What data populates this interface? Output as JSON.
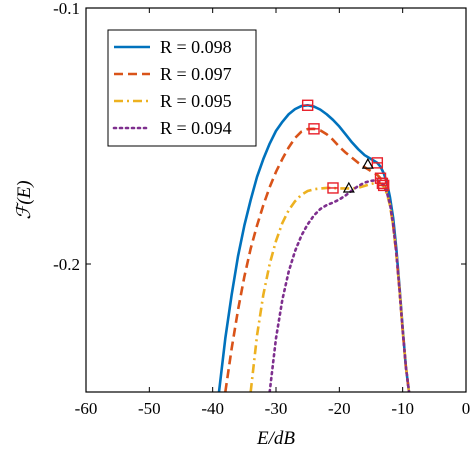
{
  "chart_data": {
    "type": "line",
    "xlabel": "E/dB",
    "ylabel": "ℱ(E)",
    "xlim": [
      -60,
      0
    ],
    "ylim": [
      -0.25,
      -0.1
    ],
    "xticks": [
      -60,
      -50,
      -40,
      -30,
      -20,
      -10,
      0
    ],
    "yticks": [
      -0.2,
      -0.1
    ],
    "xtick_labels": [
      "-60",
      "-50",
      "-40",
      "-30",
      "-20",
      "-10",
      "0"
    ],
    "ytick_labels": [
      "-0.2",
      "-0.1"
    ],
    "grid": false,
    "legend_position": "top-left",
    "series": [
      {
        "name": "R = 0.098",
        "color": "#0072BD",
        "dash": "solid",
        "x": [
          -39,
          -38,
          -37,
          -36,
          -35,
          -34,
          -33,
          -32,
          -31,
          -30,
          -29,
          -28,
          -27,
          -26,
          -25,
          -24,
          -23,
          -22,
          -21,
          -20,
          -19,
          -18,
          -17,
          -16,
          -15,
          -14,
          -13.5,
          -13,
          -12.5,
          -12,
          -11.5,
          -11,
          -10.5,
          -10,
          -9.5,
          -9
        ],
        "y": [
          -0.25,
          -0.229,
          -0.212,
          -0.197,
          -0.185,
          -0.175,
          -0.166,
          -0.159,
          -0.153,
          -0.148,
          -0.1445,
          -0.1415,
          -0.1395,
          -0.1383,
          -0.138,
          -0.1385,
          -0.1397,
          -0.1415,
          -0.1437,
          -0.1463,
          -0.1494,
          -0.1525,
          -0.1552,
          -0.1575,
          -0.159,
          -0.1605,
          -0.162,
          -0.1645,
          -0.168,
          -0.174,
          -0.182,
          -0.194,
          -0.209,
          -0.225,
          -0.24,
          -0.25
        ]
      },
      {
        "name": "R = 0.097",
        "color": "#D95319",
        "dash": "dashed",
        "x": [
          -38,
          -37,
          -36,
          -35,
          -34,
          -33,
          -32,
          -31,
          -30,
          -29,
          -28,
          -27,
          -26,
          -25,
          -24,
          -23,
          -22,
          -21,
          -20,
          -19,
          -18,
          -17,
          -16,
          -15,
          -14,
          -13.5,
          -13,
          -12.5,
          -12,
          -11.5,
          -11,
          -10.5,
          -10,
          -9.5,
          -9
        ],
        "y": [
          -0.25,
          -0.233,
          -0.218,
          -0.205,
          -0.194,
          -0.185,
          -0.177,
          -0.17,
          -0.164,
          -0.159,
          -0.1545,
          -0.1508,
          -0.1483,
          -0.1473,
          -0.1472,
          -0.1478,
          -0.1493,
          -0.1515,
          -0.1542,
          -0.1565,
          -0.1585,
          -0.1605,
          -0.1622,
          -0.1637,
          -0.1652,
          -0.1665,
          -0.1685,
          -0.172,
          -0.177,
          -0.185,
          -0.196,
          -0.21,
          -0.226,
          -0.24,
          -0.25
        ]
      },
      {
        "name": "R = 0.095",
        "color": "#EDB120",
        "dash": "dashdot",
        "x": [
          -34,
          -33,
          -32,
          -31,
          -30,
          -29,
          -28,
          -27,
          -26,
          -25,
          -24,
          -23,
          -22,
          -21,
          -20,
          -19,
          -18,
          -17,
          -16,
          -15,
          -14,
          -13.5,
          -13,
          -12.5,
          -12,
          -11.5,
          -11,
          -10.5,
          -10,
          -9.5,
          -9
        ],
        "y": [
          -0.25,
          -0.228,
          -0.212,
          -0.2,
          -0.191,
          -0.184,
          -0.179,
          -0.1755,
          -0.173,
          -0.1715,
          -0.1708,
          -0.1705,
          -0.1703,
          -0.1703,
          -0.1705,
          -0.1705,
          -0.1705,
          -0.1702,
          -0.1695,
          -0.1687,
          -0.1682,
          -0.1685,
          -0.1698,
          -0.1725,
          -0.177,
          -0.185,
          -0.196,
          -0.21,
          -0.226,
          -0.24,
          -0.25
        ]
      },
      {
        "name": "R = 0.094",
        "color": "#7E2F8E",
        "dash": "dotted",
        "x": [
          -31,
          -30,
          -29,
          -28,
          -27,
          -26,
          -25,
          -24,
          -23,
          -22,
          -21,
          -20,
          -19,
          -18,
          -17,
          -16,
          -15,
          -14,
          -13.5,
          -13,
          -12.5,
          -12,
          -11.5,
          -11,
          -10.5,
          -10,
          -9.5,
          -9
        ],
        "y": [
          -0.25,
          -0.229,
          -0.214,
          -0.203,
          -0.195,
          -0.189,
          -0.1845,
          -0.181,
          -0.1785,
          -0.177,
          -0.176,
          -0.1748,
          -0.1732,
          -0.1713,
          -0.1695,
          -0.1682,
          -0.1675,
          -0.1673,
          -0.1678,
          -0.1693,
          -0.172,
          -0.1765,
          -0.1845,
          -0.1955,
          -0.21,
          -0.226,
          -0.24,
          -0.25
        ]
      }
    ],
    "square_markers": [
      {
        "x": -25,
        "y": -0.138,
        "color": "#E8202A"
      },
      {
        "x": -24,
        "y": -0.1472,
        "color": "#E8202A"
      },
      {
        "x": -21,
        "y": -0.1703,
        "color": "#E8202A"
      },
      {
        "x": -14,
        "y": -0.1605,
        "color": "#E8202A"
      },
      {
        "x": -13.5,
        "y": -0.1665,
        "color": "#E8202A"
      },
      {
        "x": -13.2,
        "y": -0.1685,
        "color": "#E8202A"
      },
      {
        "x": -13,
        "y": -0.1693,
        "color": "#E8202A"
      }
    ],
    "triangle_markers": [
      {
        "x": -15.5,
        "y": -0.161,
        "color": "#000000"
      },
      {
        "x": -18.5,
        "y": -0.1703,
        "color": "#000000"
      }
    ]
  }
}
